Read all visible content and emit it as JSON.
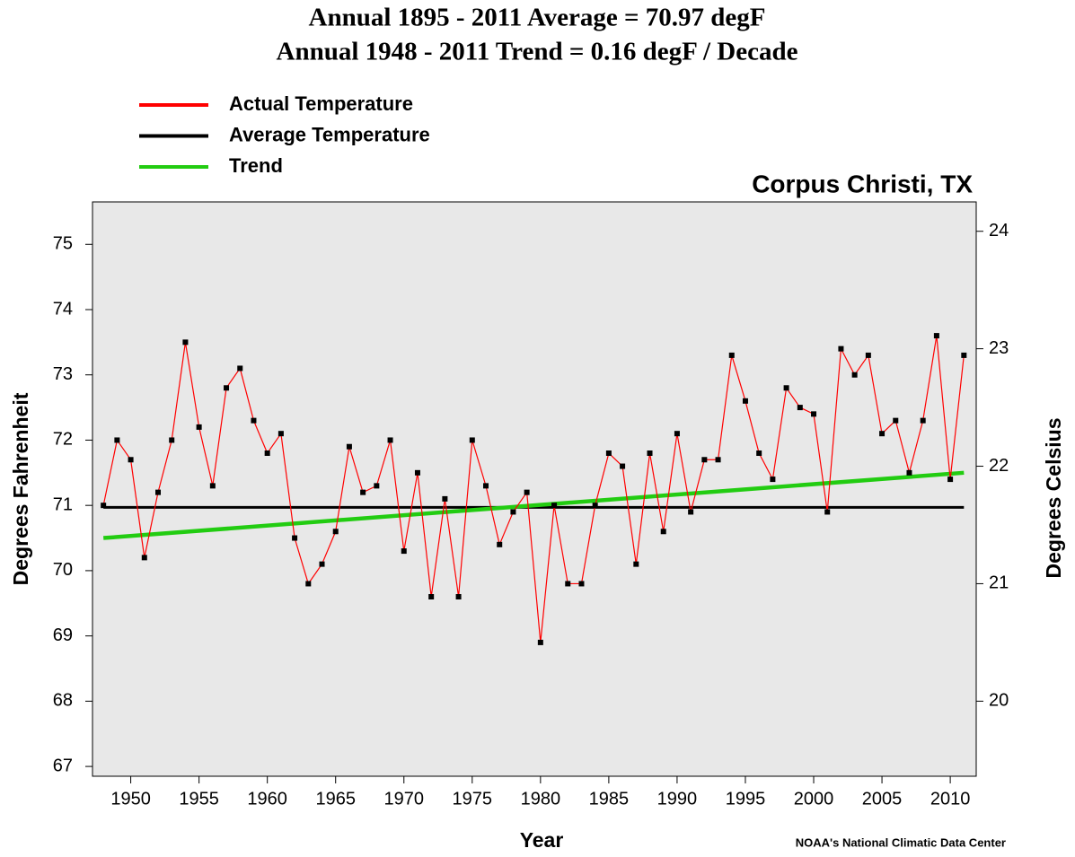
{
  "chart_data": {
    "type": "line",
    "title": "Annual 1895 - 2011 Average = 70.97 degF",
    "subtitle": "Annual 1948 - 2011 Trend = 0.16 degF / Decade",
    "location": "Corpus Christi, TX",
    "xlabel": "Year",
    "ylabel": "Degrees Fahrenheit",
    "y2label": "Degrees Celsius",
    "source": "NOAA's National Climatic Data Center",
    "series": [
      {
        "name": "Actual Temperature",
        "color": "#ff0000",
        "markers": true,
        "x": [
          1948,
          1949,
          1950,
          1951,
          1952,
          1953,
          1954,
          1955,
          1956,
          1957,
          1958,
          1959,
          1960,
          1961,
          1962,
          1963,
          1964,
          1965,
          1966,
          1967,
          1968,
          1969,
          1970,
          1971,
          1972,
          1973,
          1974,
          1975,
          1976,
          1977,
          1978,
          1979,
          1980,
          1981,
          1982,
          1983,
          1984,
          1985,
          1986,
          1987,
          1988,
          1989,
          1990,
          1991,
          1992,
          1993,
          1994,
          1995,
          1996,
          1997,
          1998,
          1999,
          2000,
          2001,
          2002,
          2003,
          2004,
          2005,
          2006,
          2007,
          2008,
          2009,
          2010,
          2011
        ],
        "values": [
          71.0,
          72.0,
          71.7,
          70.2,
          71.2,
          72.0,
          73.5,
          72.2,
          71.3,
          72.8,
          73.1,
          72.3,
          71.8,
          72.1,
          70.5,
          69.8,
          70.1,
          70.6,
          71.9,
          71.2,
          71.3,
          72.0,
          70.3,
          71.5,
          69.6,
          71.1,
          69.6,
          72.0,
          71.3,
          70.4,
          70.9,
          71.2,
          68.9,
          71.0,
          69.8,
          69.8,
          71.0,
          71.8,
          71.6,
          70.1,
          71.8,
          70.6,
          72.1,
          70.9,
          71.7,
          71.7,
          73.3,
          72.6,
          71.8,
          71.4,
          72.8,
          72.5,
          72.4,
          70.9,
          73.4,
          73.0,
          73.3,
          72.1,
          72.3,
          71.5,
          72.3,
          73.6,
          71.4,
          73.3
        ]
      },
      {
        "name": "Average Temperature",
        "color": "#000000",
        "x": [
          1948,
          2011
        ],
        "values": [
          70.97,
          70.97
        ]
      },
      {
        "name": "Trend",
        "color": "#22cc11",
        "x": [
          1948,
          2011
        ],
        "values": [
          70.5,
          71.5
        ]
      }
    ],
    "xlim": [
      1947.2,
      2011.9
    ],
    "xticks": [
      1950,
      1955,
      1960,
      1965,
      1970,
      1975,
      1980,
      1985,
      1990,
      1995,
      2000,
      2005,
      2010
    ],
    "ylim": [
      66.85,
      75.65
    ],
    "yticks": [
      67,
      68,
      69,
      70,
      71,
      72,
      73,
      74,
      75
    ],
    "y2lim": [
      19.361,
      24.25
    ],
    "y2ticks": [
      20,
      21,
      22,
      23,
      24
    ],
    "plot_background": "#e8e8e8"
  }
}
